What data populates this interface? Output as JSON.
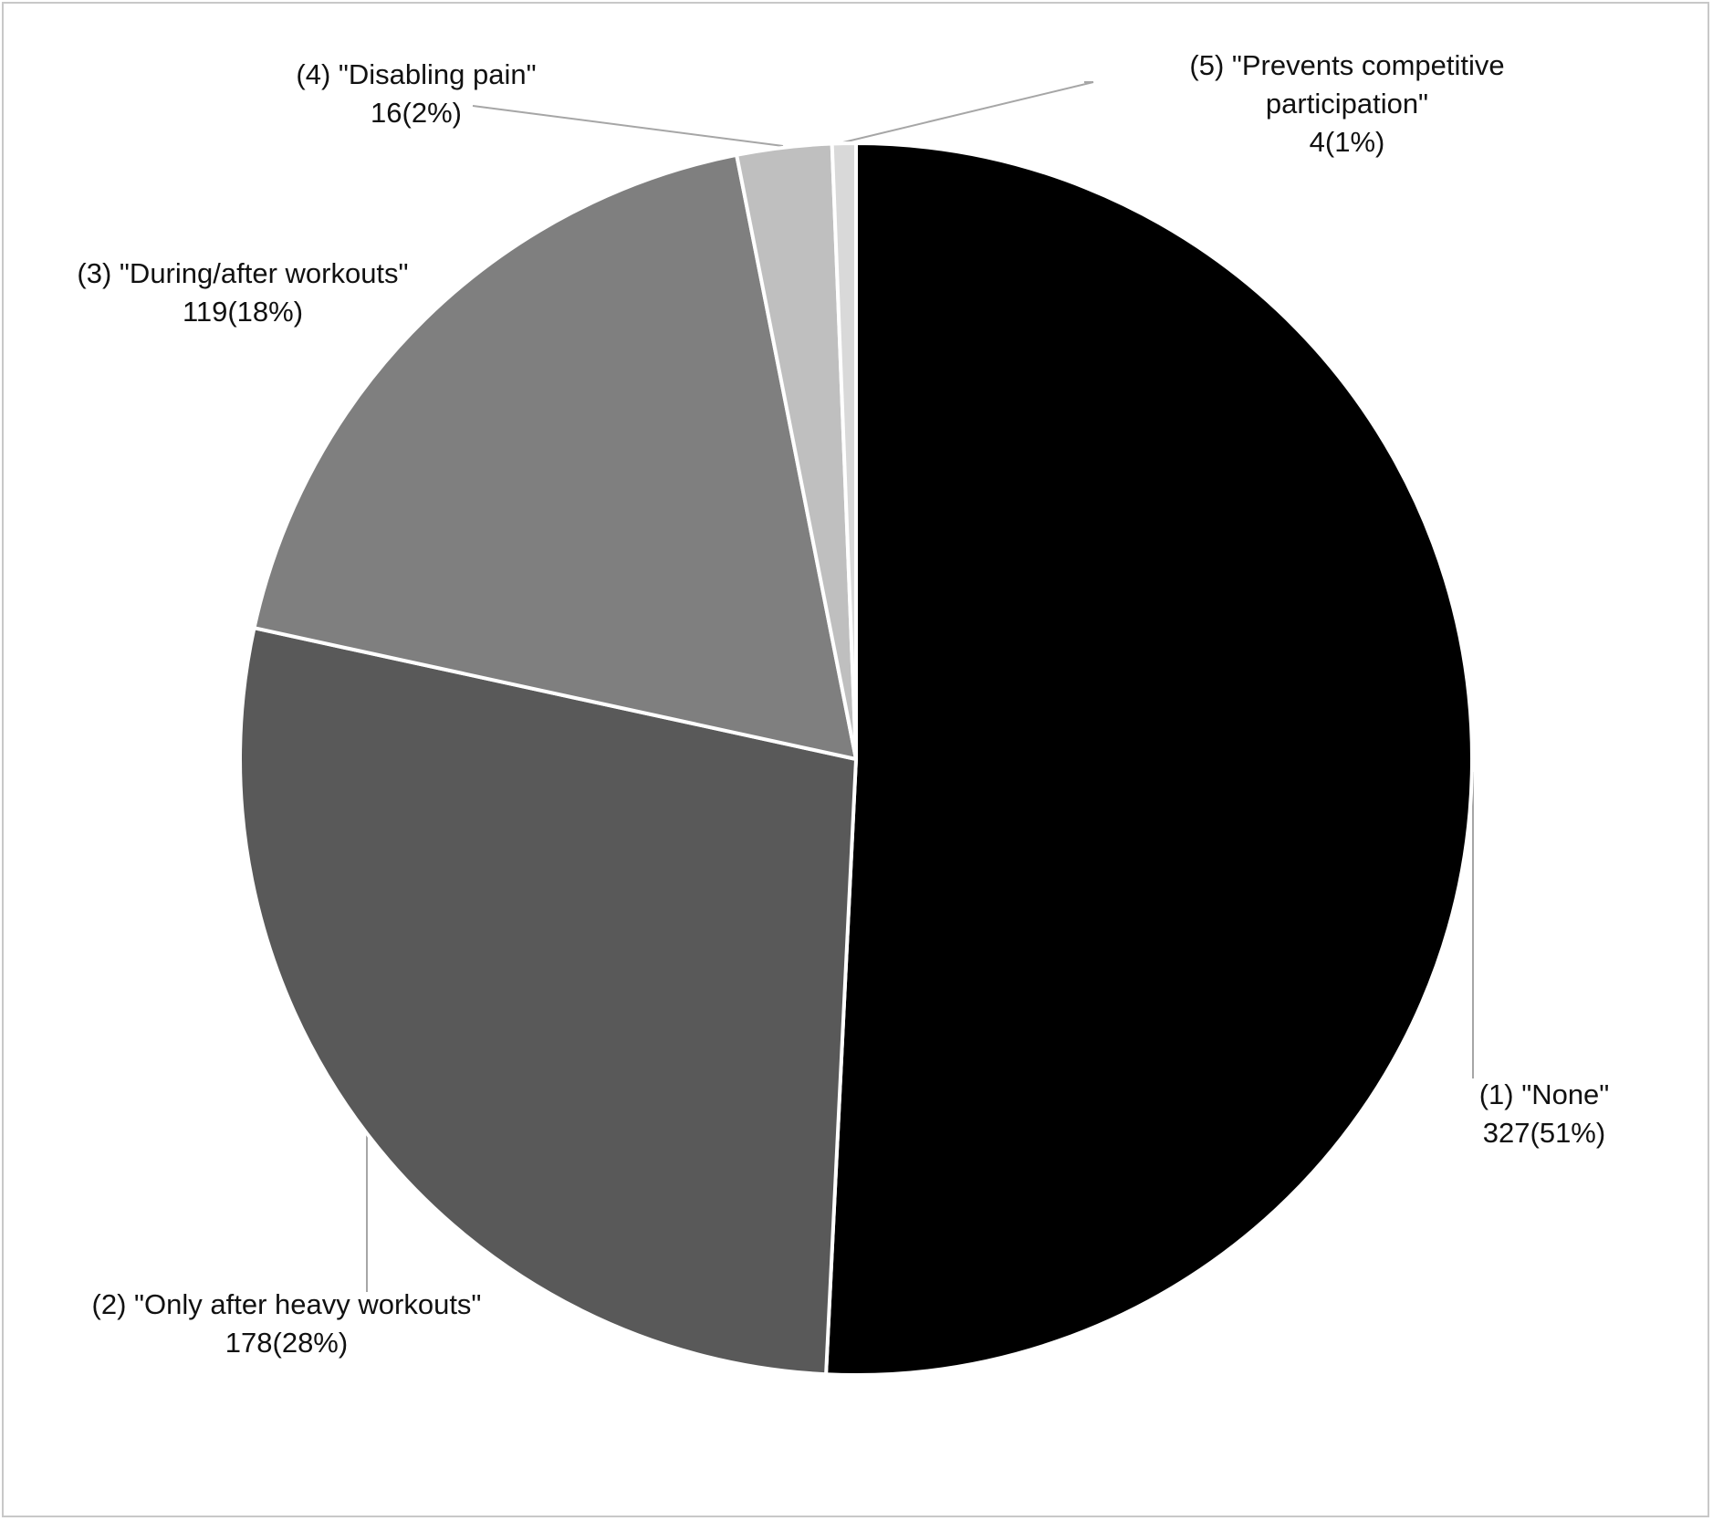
{
  "chart_data": {
    "type": "pie",
    "categories": [
      "(1) \"None\"",
      "(2) \"Only after heavy workouts\"",
      "(3) \"During/after workouts\"",
      "(4) \"Disabling pain\"",
      "(5) \"Prevents competitive participation\""
    ],
    "values": [
      327,
      178,
      119,
      16,
      4
    ],
    "value_labels": [
      "327(51%)",
      "178(28%)",
      "119(18%)",
      "16(2%)",
      "4(1%)"
    ],
    "colors": [
      "#000000",
      "#595959",
      "#7f7f7f",
      "#bfbfbf",
      "#d9d9d9"
    ]
  }
}
